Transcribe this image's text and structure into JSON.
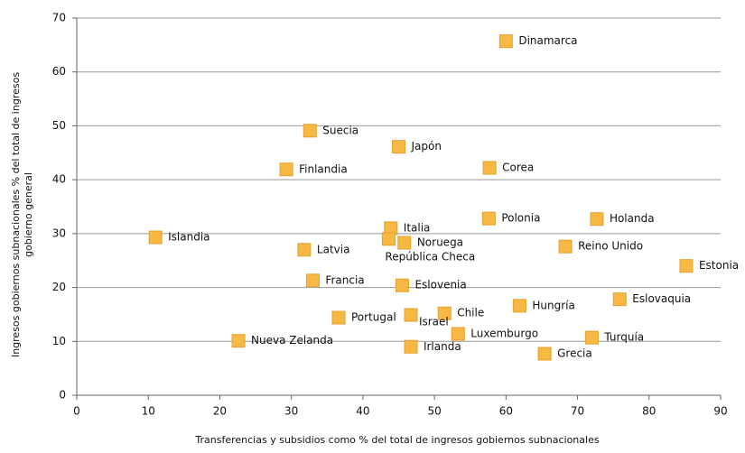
{
  "chart_data": {
    "type": "scatter",
    "xlabel": "Transferencias y subsidios como % del total de ingresos gobiernos subnacionales",
    "ylabel": [
      "Ingresos gobiernos subnacionales % del total de ingresos",
      "gobierno general"
    ],
    "labels": [
      "Dinamarca",
      "Suecia",
      "Japón",
      "Finlandia",
      "Corea",
      "Polonia",
      "Holanda",
      "Italia",
      "Islandia",
      "Noruega",
      "República Checa",
      "Reino Unido",
      "Latvia",
      "Estonia",
      "Francia",
      "Eslovenia",
      "Eslovaquia",
      "Hungría",
      "Chile",
      "Israel",
      "Portugal",
      "Luxemburgo",
      "Turquía",
      "Nueva Zelanda",
      "Irlanda",
      "Grecia"
    ],
    "x": [
      60.0,
      32.6,
      45.0,
      29.3,
      57.7,
      57.6,
      72.7,
      43.9,
      11.0,
      45.8,
      43.6,
      68.3,
      31.8,
      85.2,
      33.0,
      45.5,
      75.9,
      61.9,
      51.4,
      46.7,
      36.6,
      53.3,
      72.0,
      22.6,
      46.7,
      65.4
    ],
    "values": [
      65.7,
      49.1,
      46.1,
      41.9,
      42.2,
      32.8,
      32.7,
      31.0,
      29.3,
      28.3,
      29.0,
      27.6,
      27.0,
      24.0,
      21.3,
      20.4,
      17.8,
      16.6,
      15.2,
      14.9,
      14.4,
      11.4,
      10.7,
      10.1,
      9.0,
      7.7
    ],
    "color": "#f7b944",
    "xlim": [
      0,
      90
    ],
    "xticks": [
      0,
      10,
      20,
      30,
      40,
      50,
      60,
      70,
      80,
      90
    ],
    "ylim": [
      0,
      70
    ],
    "yticks": [
      0,
      10,
      20,
      30,
      40,
      50,
      60,
      70
    ],
    "grid": true
  }
}
